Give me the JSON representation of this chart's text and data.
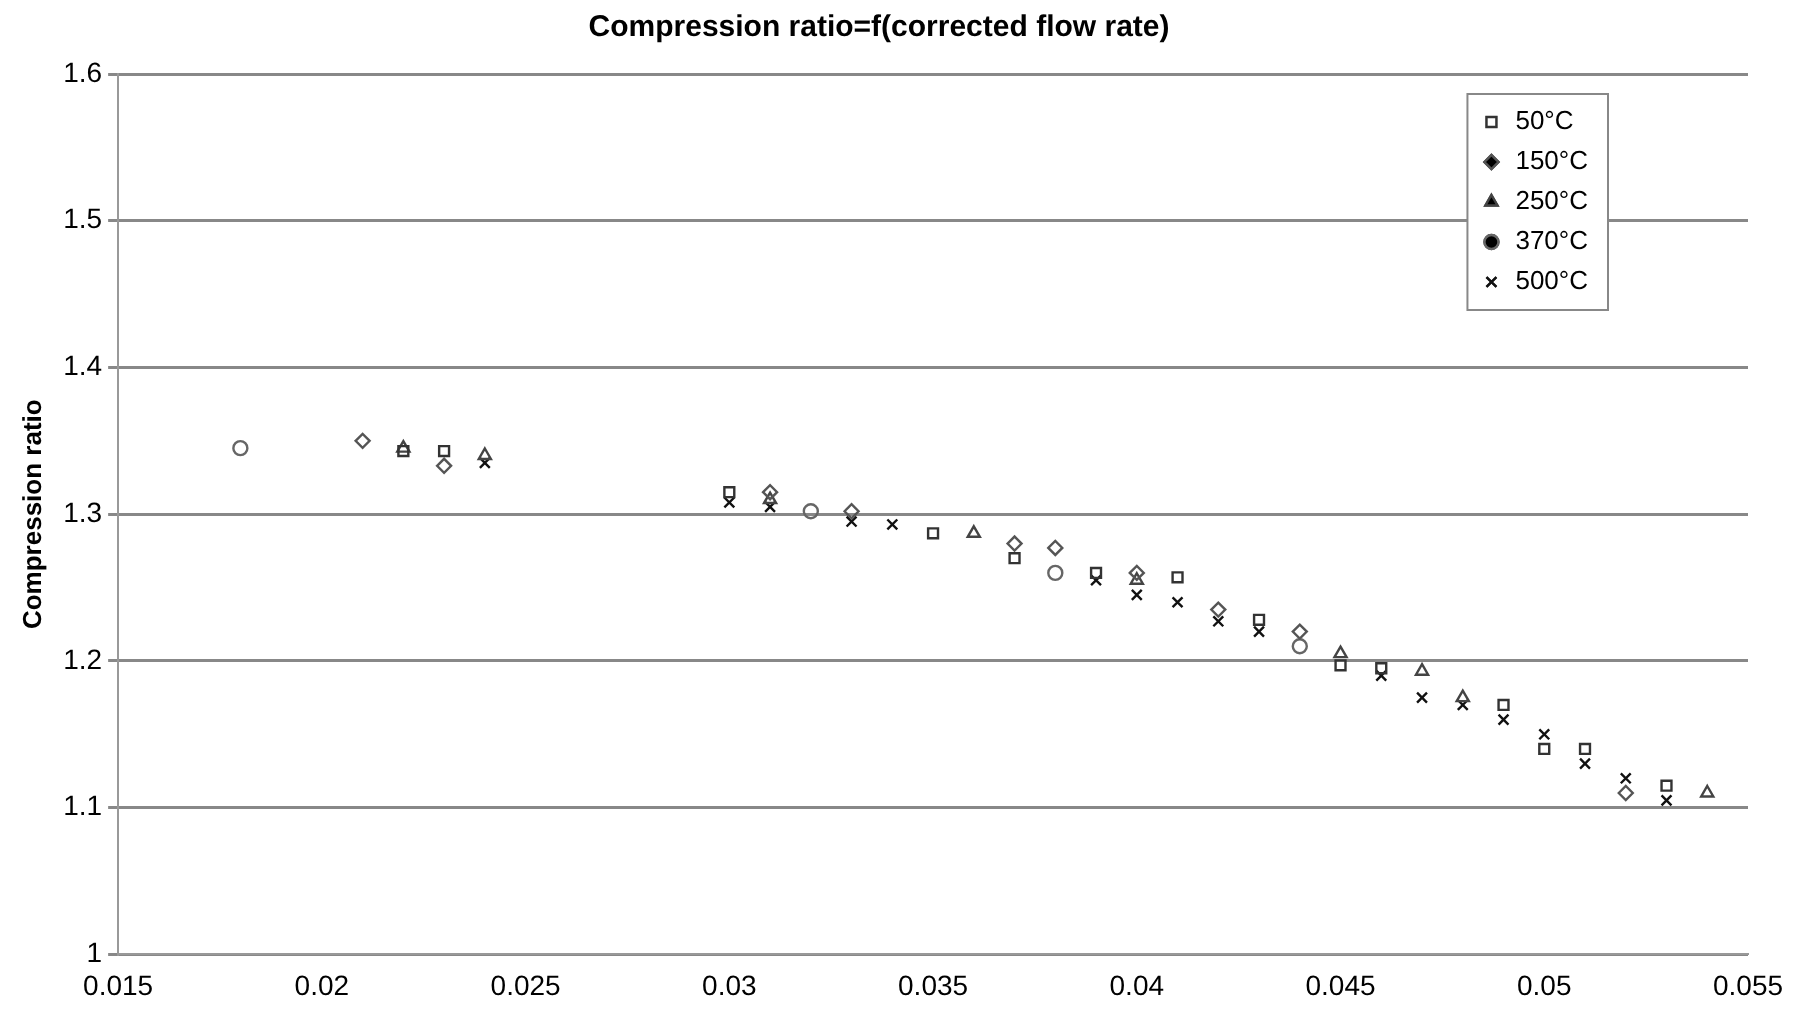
{
  "chart_data": {
    "type": "scatter",
    "title": "Compression ratio=f(corrected flow rate)",
    "ylabel": "Compression ratio",
    "xlim": [
      0.015,
      0.055
    ],
    "xticks": [
      0.015,
      0.02,
      0.025,
      0.03,
      0.035,
      0.04,
      0.045,
      0.05,
      0.055
    ],
    "ylim": [
      1,
      1.6
    ],
    "yticks": [
      1,
      1.1,
      1.2,
      1.3,
      1.4,
      1.5,
      1.6
    ],
    "grid": "y",
    "legend": "top right",
    "series": [
      {
        "name": "50°C",
        "color": "#333333",
        "marker": "square",
        "x": [
          0.022,
          0.023,
          0.03,
          0.035,
          0.037,
          0.039,
          0.041,
          0.043,
          0.045,
          0.046,
          0.049,
          0.05,
          0.051,
          0.053
        ],
        "values": [
          1.343,
          1.343,
          1.315,
          1.287,
          1.27,
          1.26,
          1.257,
          1.228,
          1.197,
          1.195,
          1.17,
          1.14,
          1.14,
          1.115
        ]
      },
      {
        "name": "150°C",
        "color": "#555555",
        "marker": "diamond",
        "x": [
          0.021,
          0.023,
          0.031,
          0.033,
          0.037,
          0.038,
          0.04,
          0.042,
          0.044,
          0.052
        ],
        "values": [
          1.35,
          1.333,
          1.315,
          1.302,
          1.28,
          1.277,
          1.26,
          1.235,
          1.22,
          1.11
        ]
      },
      {
        "name": "250°C",
        "color": "#444444",
        "marker": "triangle",
        "x": [
          0.022,
          0.024,
          0.031,
          0.036,
          0.04,
          0.045,
          0.047,
          0.048,
          0.054
        ],
        "values": [
          1.345,
          1.34,
          1.31,
          1.287,
          1.255,
          1.205,
          1.193,
          1.175,
          1.11
        ]
      },
      {
        "name": "370°C",
        "color": "#666666",
        "marker": "circle",
        "x": [
          0.018,
          0.032,
          0.038,
          0.044
        ],
        "values": [
          1.345,
          1.302,
          1.26,
          1.21
        ]
      },
      {
        "name": "500°C",
        "color": "#111111",
        "marker": "cross",
        "x": [
          0.024,
          0.03,
          0.031,
          0.033,
          0.034,
          0.039,
          0.04,
          0.041,
          0.042,
          0.043,
          0.046,
          0.047,
          0.048,
          0.049,
          0.05,
          0.051,
          0.052,
          0.053
        ],
        "values": [
          1.335,
          1.308,
          1.305,
          1.295,
          1.293,
          1.255,
          1.245,
          1.24,
          1.227,
          1.22,
          1.19,
          1.175,
          1.17,
          1.16,
          1.15,
          1.13,
          1.12,
          1.105
        ]
      }
    ]
  }
}
